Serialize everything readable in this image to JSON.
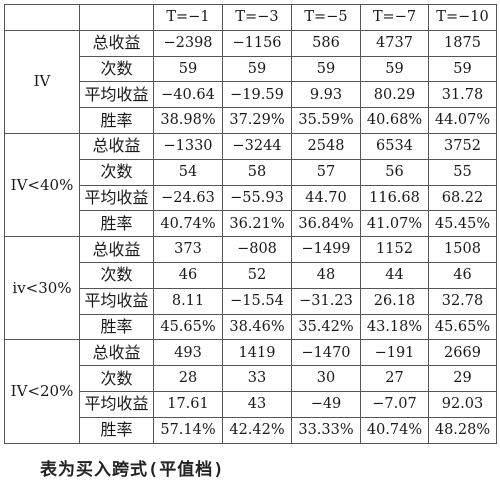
{
  "table": {
    "headers": [
      "",
      "",
      "T=−1",
      "T=−3",
      "T=−5",
      "T=−7",
      "T=−10"
    ],
    "groups": [
      {
        "label": "IV",
        "rows": [
          {
            "metric": "总收益",
            "values": [
              "−2398",
              "−1156",
              "586",
              "4737",
              "1875"
            ]
          },
          {
            "metric": "次数",
            "values": [
              "59",
              "59",
              "59",
              "59",
              "59"
            ]
          },
          {
            "metric": "平均收益",
            "values": [
              "−40.64",
              "−19.59",
              "9.93",
              "80.29",
              "31.78"
            ]
          },
          {
            "metric": "胜率",
            "values": [
              "38.98%",
              "37.29%",
              "35.59%",
              "40.68%",
              "44.07%"
            ]
          }
        ]
      },
      {
        "label": "IV<40%",
        "rows": [
          {
            "metric": "总收益",
            "values": [
              "−1330",
              "−3244",
              "2548",
              "6534",
              "3752"
            ]
          },
          {
            "metric": "次数",
            "values": [
              "54",
              "58",
              "57",
              "56",
              "55"
            ]
          },
          {
            "metric": "平均收益",
            "values": [
              "−24.63",
              "−55.93",
              "44.70",
              "116.68",
              "68.22"
            ]
          },
          {
            "metric": "胜率",
            "values": [
              "40.74%",
              "36.21%",
              "36.84%",
              "41.07%",
              "45.45%"
            ]
          }
        ]
      },
      {
        "label": "iv<30%",
        "rows": [
          {
            "metric": "总收益",
            "values": [
              "373",
              "−808",
              "−1499",
              "1152",
              "1508"
            ]
          },
          {
            "metric": "次数",
            "values": [
              "46",
              "52",
              "48",
              "44",
              "46"
            ]
          },
          {
            "metric": "平均收益",
            "values": [
              "8.11",
              "−15.54",
              "−31.23",
              "26.18",
              "32.78"
            ]
          },
          {
            "metric": "胜率",
            "values": [
              "45.65%",
              "38.46%",
              "35.42%",
              "43.18%",
              "45.65%"
            ]
          }
        ]
      },
      {
        "label": "IV<20%",
        "rows": [
          {
            "metric": "总收益",
            "values": [
              "493",
              "1419",
              "−1470",
              "−191",
              "2669"
            ]
          },
          {
            "metric": "次数",
            "values": [
              "28",
              "33",
              "30",
              "27",
              "29"
            ]
          },
          {
            "metric": "平均收益",
            "values": [
              "17.61",
              "43",
              "−49",
              "−7.07",
              "92.03"
            ]
          },
          {
            "metric": "胜率",
            "values": [
              "57.14%",
              "42.42%",
              "33.33%",
              "40.74%",
              "48.28%"
            ]
          }
        ]
      }
    ]
  },
  "caption": "表为买入跨式(平值档)"
}
